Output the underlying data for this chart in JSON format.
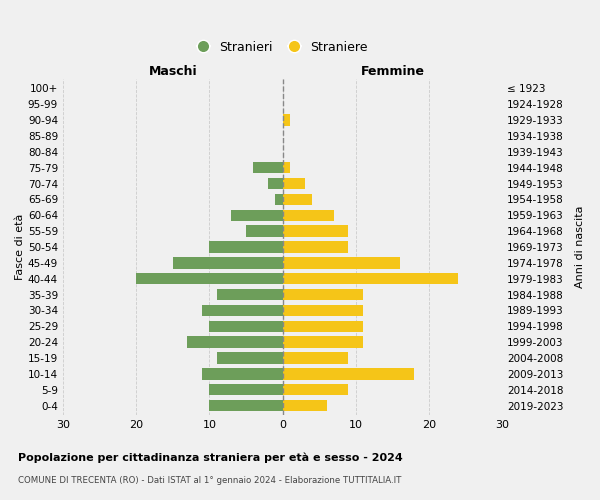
{
  "age_groups": [
    "0-4",
    "5-9",
    "10-14",
    "15-19",
    "20-24",
    "25-29",
    "30-34",
    "35-39",
    "40-44",
    "45-49",
    "50-54",
    "55-59",
    "60-64",
    "65-69",
    "70-74",
    "75-79",
    "80-84",
    "85-89",
    "90-94",
    "95-99",
    "100+"
  ],
  "birth_years": [
    "2019-2023",
    "2014-2018",
    "2009-2013",
    "2004-2008",
    "1999-2003",
    "1994-1998",
    "1989-1993",
    "1984-1988",
    "1979-1983",
    "1974-1978",
    "1969-1973",
    "1964-1968",
    "1959-1963",
    "1954-1958",
    "1949-1953",
    "1944-1948",
    "1939-1943",
    "1934-1938",
    "1929-1933",
    "1924-1928",
    "≤ 1923"
  ],
  "males": [
    10,
    10,
    11,
    9,
    13,
    10,
    11,
    9,
    20,
    15,
    10,
    5,
    7,
    1,
    2,
    4,
    0,
    0,
    0,
    0,
    0
  ],
  "females": [
    6,
    9,
    18,
    9,
    11,
    11,
    11,
    11,
    24,
    16,
    9,
    9,
    7,
    4,
    3,
    1,
    0,
    0,
    1,
    0,
    0
  ],
  "male_color": "#6d9e5a",
  "female_color": "#f5c518",
  "background_color": "#f0f0f0",
  "grid_color": "#cccccc",
  "title": "Popolazione per cittadinanza straniera per età e sesso - 2024",
  "subtitle": "COMUNE DI TRECENTA (RO) - Dati ISTAT al 1° gennaio 2024 - Elaborazione TUTTITALIA.IT",
  "left_label": "Maschi",
  "right_label": "Femmine",
  "ylabel": "Fasce di età",
  "right_ylabel": "Anni di nascita",
  "legend_male": "Stranieri",
  "legend_female": "Straniere",
  "xlim": 30,
  "bar_height": 0.72
}
